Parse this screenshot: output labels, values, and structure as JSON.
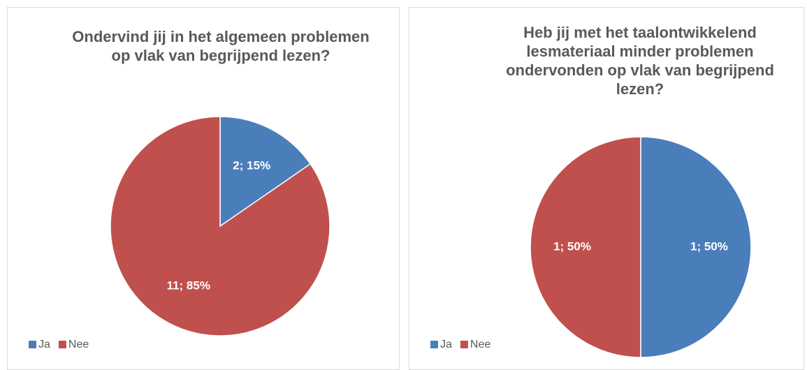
{
  "chart_data": [
    {
      "type": "pie",
      "title": "Ondervind jij in het algemeen problemen op vlak van begrijpend lezen?",
      "categories": [
        "Ja",
        "Nee"
      ],
      "values": [
        2,
        11
      ],
      "value_labels": [
        "2; 15%",
        "11; 85%"
      ],
      "colors": [
        "#4a7ebb",
        "#c0504d"
      ],
      "legend": "bottom-left"
    },
    {
      "type": "pie",
      "title": "Heb jij met het taalontwikkelend lesmateriaal minder problemen ondervonden op vlak van begrijpend lezen?",
      "categories": [
        "Ja",
        "Nee"
      ],
      "values": [
        1,
        1
      ],
      "value_labels": [
        "1; 50%",
        "1; 50%"
      ],
      "colors": [
        "#4a7ebb",
        "#c0504d"
      ],
      "legend": "bottom-left"
    }
  ]
}
